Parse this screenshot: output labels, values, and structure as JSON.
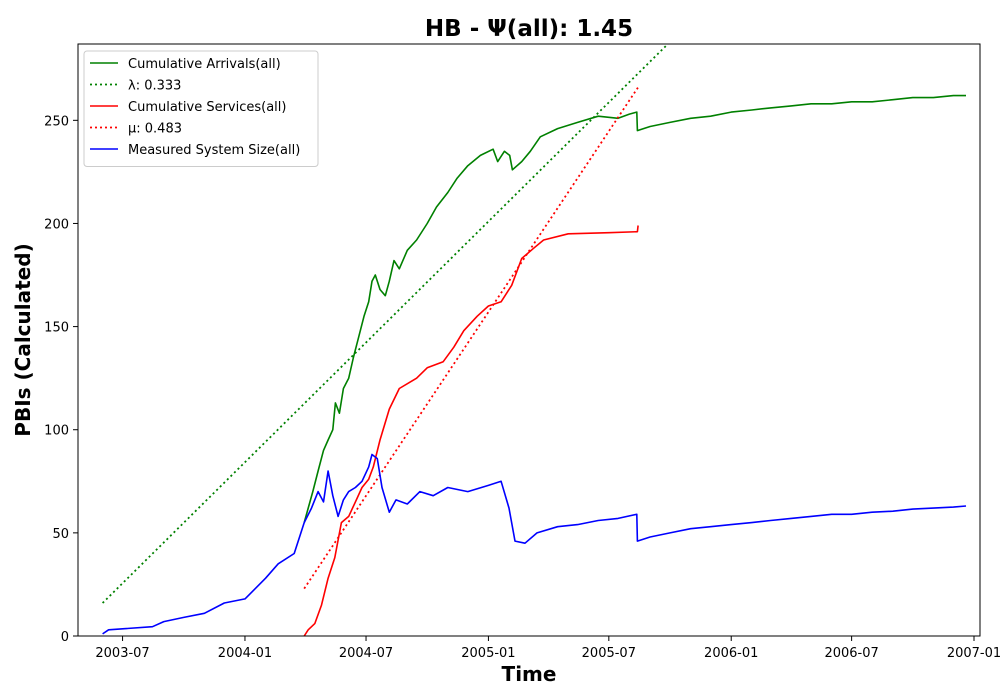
{
  "chart_data": {
    "type": "line",
    "title": "HB -  Ψ(all): 1.45",
    "xlabel": "Time",
    "ylabel": "PBIs (Calculated)",
    "xlim": [
      "2003-04-25",
      "2007-01-10"
    ],
    "ylim": [
      0,
      287
    ],
    "x_ticks": [
      "2003-07",
      "2004-01",
      "2004-07",
      "2005-01",
      "2005-07",
      "2006-01",
      "2006-07",
      "2007-01"
    ],
    "y_ticks": [
      0,
      50,
      100,
      150,
      200,
      250
    ],
    "grid": false,
    "legend_position": "top-left",
    "series": [
      {
        "name": "Cumulative Arrivals(all)",
        "style": "solid",
        "color": "#008000",
        "points": [
          [
            "2004-03-30",
            55
          ],
          [
            "2004-04-05",
            62
          ],
          [
            "2004-04-12",
            70
          ],
          [
            "2004-04-20",
            80
          ],
          [
            "2004-04-28",
            90
          ],
          [
            "2004-05-05",
            95
          ],
          [
            "2004-05-12",
            100
          ],
          [
            "2004-05-16",
            113
          ],
          [
            "2004-05-22",
            108
          ],
          [
            "2004-05-28",
            120
          ],
          [
            "2004-06-05",
            125
          ],
          [
            "2004-06-12",
            135
          ],
          [
            "2004-06-20",
            145
          ],
          [
            "2004-06-28",
            155
          ],
          [
            "2004-07-05",
            162
          ],
          [
            "2004-07-10",
            172
          ],
          [
            "2004-07-15",
            175
          ],
          [
            "2004-07-22",
            168
          ],
          [
            "2004-07-30",
            165
          ],
          [
            "2004-08-05",
            172
          ],
          [
            "2004-08-12",
            182
          ],
          [
            "2004-08-20",
            178
          ],
          [
            "2004-09-01",
            187
          ],
          [
            "2004-09-15",
            192
          ],
          [
            "2004-10-01",
            200
          ],
          [
            "2004-10-15",
            208
          ],
          [
            "2004-11-01",
            215
          ],
          [
            "2004-11-15",
            222
          ],
          [
            "2004-12-01",
            228
          ],
          [
            "2004-12-20",
            233
          ],
          [
            "2005-01-08",
            236
          ],
          [
            "2005-01-15",
            230
          ],
          [
            "2005-01-25",
            235
          ],
          [
            "2005-02-02",
            233
          ],
          [
            "2005-02-06",
            226
          ],
          [
            "2005-02-20",
            230
          ],
          [
            "2005-03-05",
            235
          ],
          [
            "2005-03-20",
            242
          ],
          [
            "2005-04-15",
            246
          ],
          [
            "2005-05-15",
            249
          ],
          [
            "2005-06-15",
            252
          ],
          [
            "2005-07-15",
            251
          ],
          [
            "2005-08-01",
            253
          ],
          [
            "2005-08-12",
            254
          ],
          [
            "2005-08-13",
            245
          ],
          [
            "2005-09-01",
            247
          ],
          [
            "2005-10-01",
            249
          ],
          [
            "2005-11-01",
            251
          ],
          [
            "2005-12-01",
            252
          ],
          [
            "2006-01-01",
            254
          ],
          [
            "2006-02-01",
            255
          ],
          [
            "2006-03-01",
            256
          ],
          [
            "2006-04-01",
            257
          ],
          [
            "2006-05-01",
            258
          ],
          [
            "2006-06-01",
            258
          ],
          [
            "2006-07-01",
            259
          ],
          [
            "2006-08-01",
            259
          ],
          [
            "2006-09-01",
            260
          ],
          [
            "2006-10-01",
            261
          ],
          [
            "2006-11-01",
            261
          ],
          [
            "2006-12-01",
            262
          ],
          [
            "2006-12-20",
            262
          ]
        ]
      },
      {
        "name": "λ: 0.333",
        "style": "dotted",
        "color": "#008000",
        "points": [
          [
            "2003-06-01",
            16
          ],
          [
            "2005-10-01",
            288
          ]
        ]
      },
      {
        "name": "Cumulative Services(all)",
        "style": "solid",
        "color": "#ff0000",
        "points": [
          [
            "2004-03-30",
            0
          ],
          [
            "2004-04-05",
            3
          ],
          [
            "2004-04-15",
            6
          ],
          [
            "2004-04-25",
            15
          ],
          [
            "2004-05-05",
            28
          ],
          [
            "2004-05-15",
            38
          ],
          [
            "2004-05-25",
            55
          ],
          [
            "2004-06-05",
            58
          ],
          [
            "2004-06-15",
            65
          ],
          [
            "2004-06-25",
            72
          ],
          [
            "2004-07-05",
            76
          ],
          [
            "2004-07-12",
            82
          ],
          [
            "2004-07-22",
            95
          ],
          [
            "2004-08-05",
            110
          ],
          [
            "2004-08-20",
            120
          ],
          [
            "2004-09-15",
            125
          ],
          [
            "2004-10-01",
            130
          ],
          [
            "2004-10-25",
            133
          ],
          [
            "2004-11-10",
            140
          ],
          [
            "2004-11-25",
            148
          ],
          [
            "2004-12-15",
            155
          ],
          [
            "2005-01-01",
            160
          ],
          [
            "2005-01-20",
            162
          ],
          [
            "2005-02-05",
            170
          ],
          [
            "2005-02-20",
            183
          ],
          [
            "2005-03-10",
            188
          ],
          [
            "2005-03-25",
            192
          ],
          [
            "2005-05-01",
            195
          ],
          [
            "2005-07-01",
            195.5
          ],
          [
            "2005-08-13",
            196
          ],
          [
            "2005-08-14",
            199
          ]
        ]
      },
      {
        "name": "μ: 0.483",
        "style": "dotted",
        "color": "#ff0000",
        "points": [
          [
            "2004-03-30",
            23
          ],
          [
            "2005-08-14",
            266
          ]
        ]
      },
      {
        "name": "Measured System Size(all)",
        "style": "solid",
        "color": "#0000ff",
        "points": [
          [
            "2003-06-01",
            1
          ],
          [
            "2003-06-10",
            3
          ],
          [
            "2003-07-01",
            3.5
          ],
          [
            "2003-08-15",
            4.5
          ],
          [
            "2003-09-01",
            7
          ],
          [
            "2003-10-01",
            9
          ],
          [
            "2003-11-01",
            11
          ],
          [
            "2003-12-01",
            16
          ],
          [
            "2004-01-01",
            18
          ],
          [
            "2004-02-01",
            28
          ],
          [
            "2004-02-20",
            35
          ],
          [
            "2004-03-15",
            40
          ],
          [
            "2004-03-30",
            55
          ],
          [
            "2004-04-10",
            62
          ],
          [
            "2004-04-20",
            70
          ],
          [
            "2004-04-28",
            65
          ],
          [
            "2004-05-05",
            80
          ],
          [
            "2004-05-12",
            68
          ],
          [
            "2004-05-20",
            58
          ],
          [
            "2004-05-28",
            66
          ],
          [
            "2004-06-05",
            70
          ],
          [
            "2004-06-15",
            72
          ],
          [
            "2004-06-25",
            75
          ],
          [
            "2004-07-05",
            82
          ],
          [
            "2004-07-10",
            88
          ],
          [
            "2004-07-18",
            86
          ],
          [
            "2004-07-25",
            72
          ],
          [
            "2004-08-05",
            60
          ],
          [
            "2004-08-15",
            66
          ],
          [
            "2004-09-01",
            64
          ],
          [
            "2004-09-20",
            70
          ],
          [
            "2004-10-10",
            68
          ],
          [
            "2004-11-01",
            72
          ],
          [
            "2004-12-01",
            70
          ],
          [
            "2005-01-01",
            73
          ],
          [
            "2005-01-20",
            75
          ],
          [
            "2005-02-01",
            62
          ],
          [
            "2005-02-10",
            46
          ],
          [
            "2005-02-25",
            45
          ],
          [
            "2005-03-15",
            50
          ],
          [
            "2005-04-15",
            53
          ],
          [
            "2005-05-15",
            54
          ],
          [
            "2005-06-15",
            56
          ],
          [
            "2005-07-15",
            57
          ],
          [
            "2005-08-12",
            59
          ],
          [
            "2005-08-13",
            46
          ],
          [
            "2005-09-01",
            48
          ],
          [
            "2005-10-01",
            50
          ],
          [
            "2005-11-01",
            52
          ],
          [
            "2005-12-01",
            53
          ],
          [
            "2006-01-01",
            54
          ],
          [
            "2006-02-01",
            55
          ],
          [
            "2006-03-01",
            56
          ],
          [
            "2006-04-01",
            57
          ],
          [
            "2006-05-01",
            58
          ],
          [
            "2006-06-01",
            59
          ],
          [
            "2006-07-01",
            59
          ],
          [
            "2006-08-01",
            60
          ],
          [
            "2006-09-01",
            60.5
          ],
          [
            "2006-10-01",
            61.5
          ],
          [
            "2006-11-01",
            62
          ],
          [
            "2006-12-01",
            62.5
          ],
          [
            "2006-12-20",
            63
          ]
        ]
      }
    ]
  }
}
